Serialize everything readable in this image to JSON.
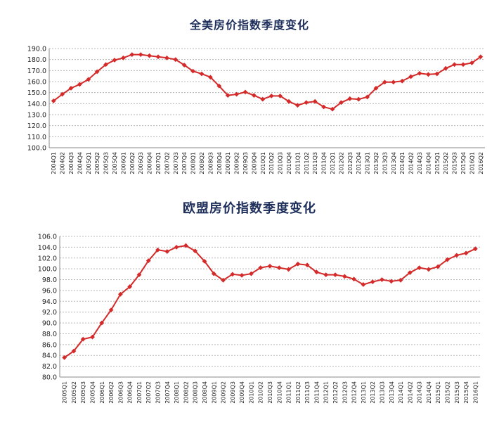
{
  "chart_data": [
    {
      "type": "line",
      "title": "全美房价指数季度变化",
      "xlabel": "",
      "ylabel": "",
      "ylim": [
        100,
        190
      ],
      "yticks": [
        "100.0",
        "110.0",
        "120.0",
        "130.0",
        "140.0",
        "150.0",
        "160.0",
        "170.0",
        "180.0",
        "190.0"
      ],
      "grid": true,
      "color": "#d42a2a",
      "categories": [
        "2004Q1",
        "2004Q2",
        "2004Q3",
        "2004Q4",
        "2005Q1",
        "2005Q2",
        "2005Q3",
        "2005Q4",
        "2006Q1",
        "2006Q2",
        "2006Q3",
        "2006Q4",
        "2007Q1",
        "2007Q2",
        "2007Q3",
        "2007Q4",
        "2008Q1",
        "2008Q2",
        "2008Q3",
        "2008Q4",
        "2009Q1",
        "2009Q2",
        "2009Q3",
        "2009Q4",
        "2010Q1",
        "2010Q2",
        "2010Q3",
        "2010Q4",
        "2011Q1",
        "2011Q2",
        "2011Q3",
        "2011Q4",
        "2012Q1",
        "2012Q2",
        "2012Q3",
        "2012Q4",
        "2013Q1",
        "2013Q2",
        "2013Q3",
        "2013Q4",
        "2014Q1",
        "2014Q2",
        "2014Q3",
        "2014Q4",
        "2015Q1",
        "2015Q2",
        "2015Q3",
        "2015Q4",
        "2016Q1",
        "2016Q2"
      ],
      "values": [
        142.5,
        148.5,
        154,
        157.5,
        162,
        169,
        175.5,
        179.5,
        181.5,
        184.5,
        184.5,
        183.5,
        182.5,
        181.5,
        180,
        175,
        169.5,
        167,
        164,
        156,
        147.5,
        148.5,
        150.5,
        147.5,
        144,
        147,
        147,
        142,
        138.5,
        141,
        142,
        137,
        135,
        141,
        144.5,
        144,
        146,
        154,
        159.5,
        159.5,
        160.5,
        164.5,
        167.5,
        166.5,
        167,
        172,
        175.5,
        175.5,
        177,
        182.5
      ]
    },
    {
      "type": "line",
      "title": "欧盟房价指数季度变化",
      "xlabel": "",
      "ylabel": "",
      "ylim": [
        80,
        106
      ],
      "yticks": [
        "80.0",
        "82.0",
        "84.0",
        "86.0",
        "88.0",
        "90.0",
        "92.0",
        "94.0",
        "96.0",
        "98.0",
        "100.0",
        "102.0",
        "104.0",
        "106.0"
      ],
      "grid": true,
      "color": "#d42a2a",
      "categories": [
        "2005Q1",
        "2005Q2",
        "2005Q3",
        "2005Q4",
        "2006Q1",
        "2006Q2",
        "2006Q3",
        "2006Q4",
        "2007Q1",
        "2007Q2",
        "2007Q3",
        "2007Q4",
        "2008Q1",
        "2008Q2",
        "2008Q3",
        "2008Q4",
        "2009Q1",
        "2009Q2",
        "2009Q3",
        "2009Q4",
        "2010Q1",
        "2010Q2",
        "2010Q3",
        "2010Q4",
        "2011Q1",
        "2011Q2",
        "2011Q3",
        "2011Q4",
        "2012Q1",
        "2012Q2",
        "2012Q3",
        "2012Q4",
        "2013Q1",
        "2013Q2",
        "2013Q3",
        "2013Q4",
        "2014Q1",
        "2014Q2",
        "2014Q3",
        "2014Q4",
        "2015Q1",
        "2015Q2",
        "2015Q3",
        "2015Q4",
        "2016Q1"
      ],
      "values": [
        83.6,
        84.8,
        87,
        87.4,
        90,
        92.4,
        95.3,
        96.7,
        98.9,
        101.5,
        103.5,
        103.2,
        104,
        104.3,
        103.3,
        101.4,
        99.1,
        97.9,
        99,
        98.8,
        99.1,
        100.2,
        100.5,
        100.2,
        99.9,
        100.9,
        100.7,
        99.4,
        98.9,
        98.9,
        98.6,
        98.1,
        97.1,
        97.6,
        98,
        97.7,
        97.9,
        99.3,
        100.2,
        99.9,
        100.4,
        101.7,
        102.5,
        102.9,
        103.7
      ]
    }
  ]
}
